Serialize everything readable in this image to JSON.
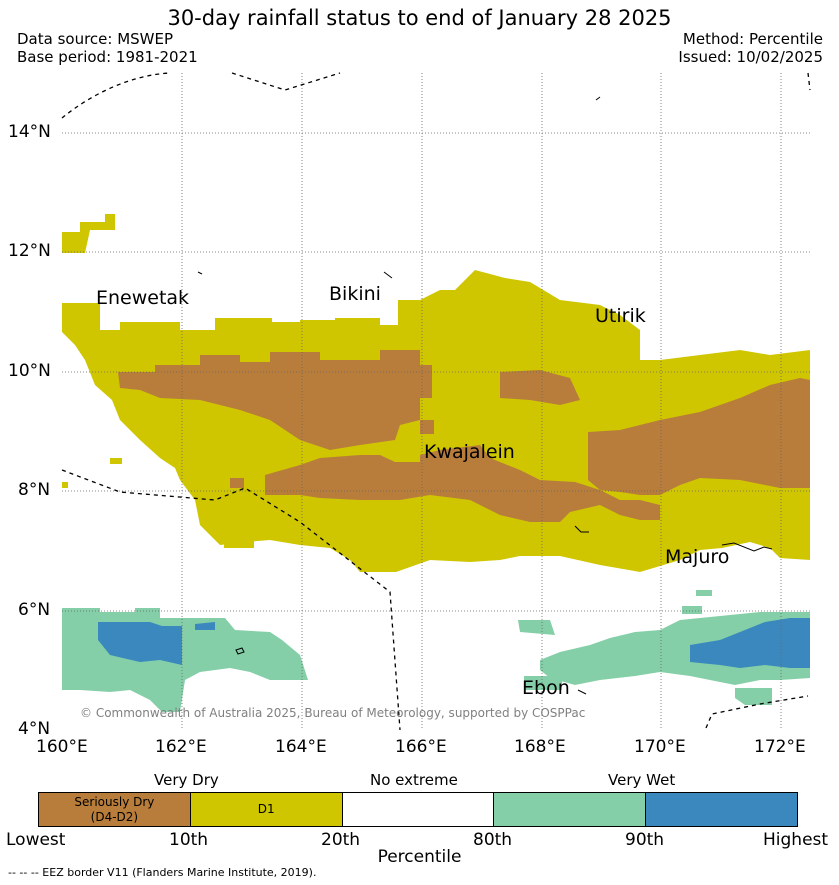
{
  "header": {
    "title": "30-day rainfall status to end of January 28 2025",
    "data_source": "Data source: MSWEP",
    "base_period": "Base period: 1981-2021",
    "method": "Method: Percentile",
    "issued": "Issued: 10/02/2025"
  },
  "map": {
    "lat_labels": [
      "14°N",
      "12°N",
      "10°N",
      "8°N",
      "6°N",
      "4°N"
    ],
    "lon_labels": [
      "160°E",
      "162°E",
      "164°E",
      "166°E",
      "168°E",
      "170°E",
      "172°E"
    ],
    "places": {
      "enewetak": "Enewetak",
      "bikini": "Bikini",
      "utirik": "Utirik",
      "kwajalein": "Kwajalein",
      "majuro": "Majuro",
      "ebon": "Ebon"
    },
    "copyright": "© Commonwealth of Australia 2025, Bureau of Meteorology, supported by COSPPac"
  },
  "legend": {
    "categories": {
      "very_dry": "Very Dry",
      "no_extreme": "No extreme",
      "very_wet": "Very Wet"
    },
    "segments": [
      {
        "label": "Seriously Dry\n(D4-D2)",
        "color": "#b87d3b"
      },
      {
        "label": "D1",
        "color": "#cfc600"
      },
      {
        "label": "",
        "color": "#ffffff"
      },
      {
        "label": "",
        "color": "#84cfa8"
      },
      {
        "label": "",
        "color": "#3a88bd"
      }
    ],
    "ticks": [
      "Lowest",
      "10th",
      "20th",
      "80th",
      "90th",
      "Highest"
    ],
    "axis_title": "Percentile"
  },
  "footer": {
    "eez": "--  --  -- EEZ border V11 (Flanders Marine Institute, 2019)."
  }
}
